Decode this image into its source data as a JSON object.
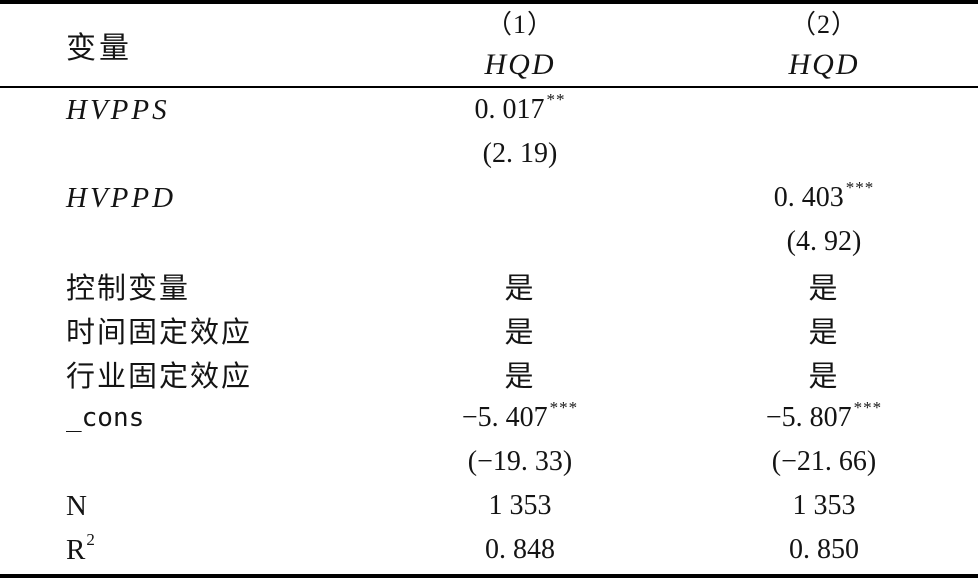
{
  "table": {
    "header": {
      "variable_label": "变量",
      "col1_num": "（1）",
      "col1_dep": "HQD",
      "col2_num": "（2）",
      "col2_dep": "HQD"
    },
    "rows": [
      {
        "label": "HVPPS",
        "c1": "0. 017",
        "c1_sup": "**"
      },
      {
        "c1": "(2. 19)"
      },
      {
        "label": "HVPPD",
        "c2": "0. 403",
        "c2_sup": "***"
      },
      {
        "c2": "(4. 92)"
      },
      {
        "label": "控制变量",
        "c1": "是",
        "c2": "是"
      },
      {
        "label": "时间固定效应",
        "c1": "是",
        "c2": "是"
      },
      {
        "label": "行业固定效应",
        "c1": "是",
        "c2": "是"
      },
      {
        "label": "_cons",
        "c1": "−5. 407",
        "c1_sup": "***",
        "c2": "−5. 807",
        "c2_sup": "***"
      },
      {
        "c1": "(−19. 33)",
        "c2": "(−21. 66)"
      },
      {
        "label": "N",
        "c1": "1 353",
        "c2": "1 353"
      },
      {
        "label": "R",
        "label_sup": "2",
        "c1": "0. 848",
        "c2": "0. 850"
      }
    ]
  }
}
